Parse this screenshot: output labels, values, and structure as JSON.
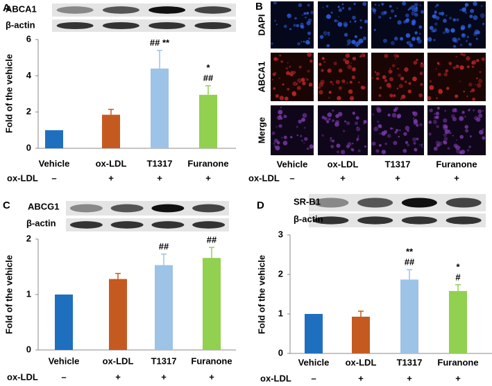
{
  "chart_data": [
    {
      "type": "bar",
      "panel": "A",
      "blots": [
        "ABCA1",
        "β-actin"
      ],
      "ylabel": "Fold  of the vehicle",
      "categories": [
        "Vehicle",
        "ox-LDL",
        "T1317",
        "Furanone"
      ],
      "values": [
        1,
        1.85,
        4.4,
        2.95
      ],
      "errors": [
        0,
        0.3,
        1.0,
        0.5
      ],
      "colors": [
        "#1f6fbf",
        "#c55a21",
        "#9dc3e6",
        "#92d050"
      ],
      "annotations": [
        null,
        null,
        [
          "## **"
        ],
        [
          "*",
          "##"
        ]
      ],
      "treatment_label": "ox-LDL",
      "treatment": [
        "–",
        "+",
        "+",
        "+"
      ],
      "ylim": [
        0,
        6
      ],
      "yticks": [
        0,
        2,
        4,
        6
      ]
    },
    {
      "type": "bar",
      "panel": "C",
      "blots": [
        "ABCG1",
        "β-actin"
      ],
      "ylabel": "Fold of the vehicle",
      "categories": [
        "Vehicle",
        "ox-LDL",
        "T1317",
        "Furanone"
      ],
      "values": [
        1,
        1.28,
        1.53,
        1.66
      ],
      "errors": [
        0,
        0.1,
        0.2,
        0.19
      ],
      "colors": [
        "#1f6fbf",
        "#c55a21",
        "#9dc3e6",
        "#92d050"
      ],
      "annotations": [
        null,
        null,
        [
          "##"
        ],
        [
          "##"
        ]
      ],
      "treatment_label": "ox-LDL",
      "treatment": [
        "–",
        "+",
        "+",
        "+"
      ],
      "ylim": [
        0,
        2
      ],
      "yticks": [
        0,
        1,
        2
      ]
    },
    {
      "type": "bar",
      "panel": "D",
      "blots": [
        "SR-B1",
        "β-actin"
      ],
      "ylabel": "Fold of the vehicle",
      "categories": [
        "Vehicle",
        "ox-LDL",
        "T1317",
        "Furanone"
      ],
      "values": [
        1,
        0.93,
        1.87,
        1.58
      ],
      "errors": [
        0,
        0.14,
        0.25,
        0.16
      ],
      "colors": [
        "#1f6fbf",
        "#c55a21",
        "#9dc3e6",
        "#92d050"
      ],
      "annotations": [
        null,
        null,
        [
          "**",
          "##"
        ],
        [
          "*",
          "#"
        ]
      ],
      "treatment_label": "ox-LDL",
      "treatment": [
        "–",
        "+",
        "+",
        "+"
      ],
      "ylim": [
        0,
        3
      ],
      "yticks": [
        0,
        1,
        2,
        3
      ]
    }
  ],
  "image_panel": {
    "panel": "B",
    "rows": [
      "DAPI",
      "ABCA1",
      "Merge"
    ],
    "columns": [
      "Vehicle",
      "ox-LDL",
      "T1317",
      "Furanone"
    ],
    "treatment_label": "ox-LDL",
    "treatment": [
      "–",
      "+",
      "+",
      "+"
    ]
  }
}
